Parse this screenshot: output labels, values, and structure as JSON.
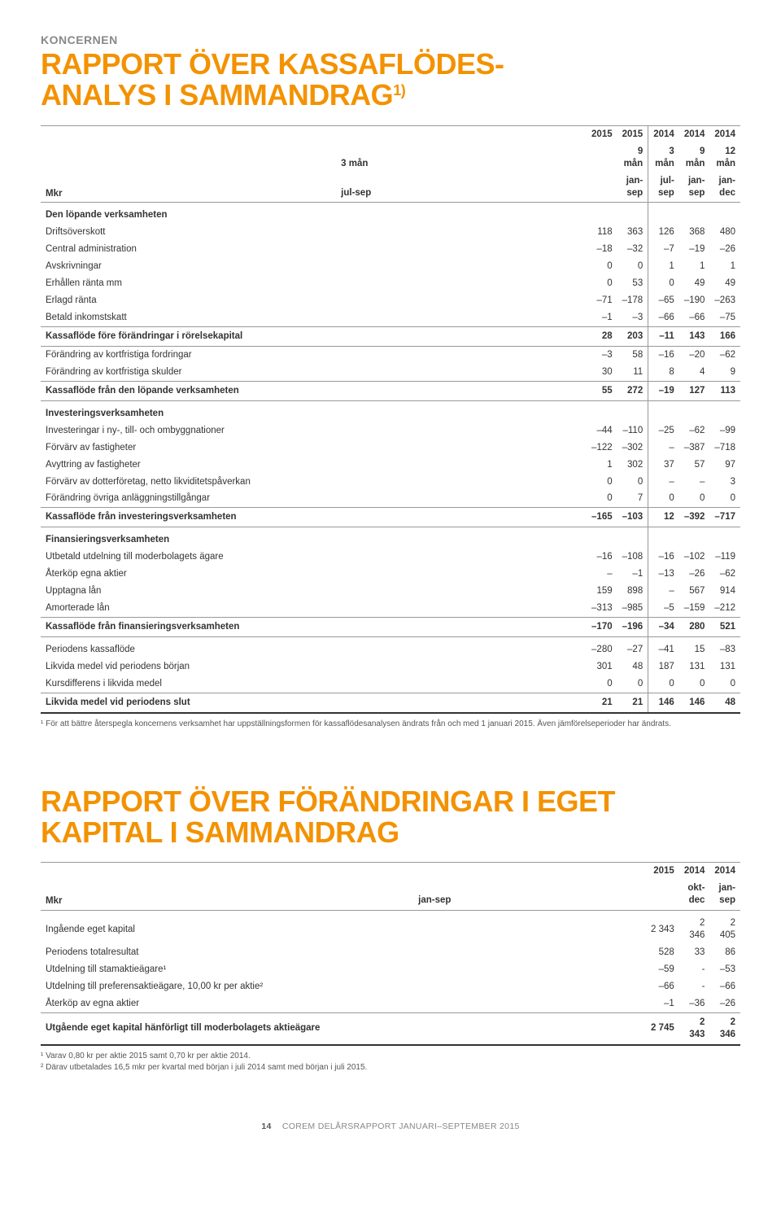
{
  "page": {
    "kicker": "KONCERNEN",
    "footer_page": "14",
    "footer_text": "COREM DELÅRSRAPPORT JANUARI–SEPTEMBER 2015"
  },
  "table1": {
    "title_line1": "RAPPORT ÖVER KASSAFLÖDES-",
    "title_line2": "ANALYS I SAMMANDRAG",
    "title_sup": "1)",
    "col_label": "Mkr",
    "columns": [
      {
        "y": "2015",
        "p": "3 mån",
        "r": "jul-sep"
      },
      {
        "y": "2015",
        "p": "9 mån",
        "r": "jan-sep"
      },
      {
        "y": "2014",
        "p": "3 mån",
        "r": "jul-sep"
      },
      {
        "y": "2014",
        "p": "9 mån",
        "r": "jan-sep"
      },
      {
        "y": "2014",
        "p": "12 mån",
        "r": "jan-dec"
      }
    ],
    "sections": [
      {
        "head": "Den löpande verksamheten",
        "rows": [
          {
            "l": "Driftsöverskott",
            "v": [
              "118",
              "363",
              "126",
              "368",
              "480"
            ]
          },
          {
            "l": "Central administration",
            "v": [
              "–18",
              "–32",
              "–7",
              "–19",
              "–26"
            ]
          },
          {
            "l": "Avskrivningar",
            "v": [
              "0",
              "0",
              "1",
              "1",
              "1"
            ]
          },
          {
            "l": "Erhållen ränta mm",
            "v": [
              "0",
              "53",
              "0",
              "49",
              "49"
            ]
          },
          {
            "l": "Erlagd ränta",
            "v": [
              "–71",
              "–178",
              "–65",
              "–190",
              "–263"
            ]
          },
          {
            "l": "Betald inkomstskatt",
            "v": [
              "–1",
              "–3",
              "–66",
              "–66",
              "–75"
            ]
          }
        ],
        "subtotal": {
          "l": "Kassaflöde före förändringar i rörelsekapital",
          "v": [
            "28",
            "203",
            "–11",
            "143",
            "166"
          ]
        },
        "rows2": [
          {
            "l": "Förändring av kortfristiga fordringar",
            "v": [
              "–3",
              "58",
              "–16",
              "–20",
              "–62"
            ]
          },
          {
            "l": "Förändring av kortfristiga skulder",
            "v": [
              "30",
              "11",
              "8",
              "4",
              "9"
            ]
          }
        ],
        "subtotal2": {
          "l": "Kassaflöde från den löpande verksamheten",
          "v": [
            "55",
            "272",
            "–19",
            "127",
            "113"
          ]
        }
      },
      {
        "head": "Investeringsverksamheten",
        "rows": [
          {
            "l": "Investeringar i ny-, till- och ombyggnationer",
            "v": [
              "–44",
              "–110",
              "–25",
              "–62",
              "–99"
            ]
          },
          {
            "l": "Förvärv av fastigheter",
            "v": [
              "–122",
              "–302",
              "–",
              "–387",
              "–718"
            ]
          },
          {
            "l": "Avyttring av fastigheter",
            "v": [
              "1",
              "302",
              "37",
              "57",
              "97"
            ]
          },
          {
            "l": "Förvärv av dotterföretag, netto likviditetspåverkan",
            "v": [
              "0",
              "0",
              "–",
              "–",
              "3"
            ]
          },
          {
            "l": "Förändring övriga anläggningstillgångar",
            "v": [
              "0",
              "7",
              "0",
              "0",
              "0"
            ]
          }
        ],
        "subtotal": {
          "l": "Kassaflöde från investeringsverksamheten",
          "v": [
            "–165",
            "–103",
            "12",
            "–392",
            "–717"
          ]
        }
      },
      {
        "head": "Finansieringsverksamheten",
        "rows": [
          {
            "l": "Utbetald utdelning till moderbolagets ägare",
            "v": [
              "–16",
              "–108",
              "–16",
              "–102",
              "–119"
            ]
          },
          {
            "l": "Återköp egna aktier",
            "v": [
              "–",
              "–1",
              "–13",
              "–26",
              "–62"
            ]
          },
          {
            "l": "Upptagna lån",
            "v": [
              "159",
              "898",
              "–",
              "567",
              "914"
            ]
          },
          {
            "l": "Amorterade lån",
            "v": [
              "–313",
              "–985",
              "–5",
              "–159",
              "–212"
            ]
          }
        ],
        "subtotal": {
          "l": "Kassaflöde från finansieringsverksamheten",
          "v": [
            "–170",
            "–196",
            "–34",
            "280",
            "521"
          ]
        }
      }
    ],
    "closing_rows": [
      {
        "l": "Periodens kassaflöde",
        "v": [
          "–280",
          "–27",
          "–41",
          "15",
          "–83"
        ]
      },
      {
        "l": "Likvida medel vid periodens början",
        "v": [
          "301",
          "48",
          "187",
          "131",
          "131"
        ]
      },
      {
        "l": "Kursdifferens i likvida medel",
        "v": [
          "0",
          "0",
          "0",
          "0",
          "0"
        ]
      }
    ],
    "final": {
      "l": "Likvida medel vid periodens slut",
      "v": [
        "21",
        "21",
        "146",
        "146",
        "48"
      ]
    },
    "footnote": "¹ För att bättre återspegla koncernens verksamhet har uppställningsformen för kassaflödesanalysen ändrats från och med 1 januari 2015. Även jämförelseperioder har ändrats."
  },
  "table2": {
    "title_line1": "RAPPORT ÖVER FÖRÄNDRINGAR I EGET",
    "title_line2": "KAPITAL I SAMMANDRAG",
    "col_label": "Mkr",
    "columns": [
      {
        "y": "2015",
        "r": "jan-sep"
      },
      {
        "y": "2014",
        "r": "okt-dec"
      },
      {
        "y": "2014",
        "r": "jan-sep"
      }
    ],
    "rows": [
      {
        "l": "Ingående eget kapital",
        "v": [
          "2 343",
          "2 346",
          "2 405"
        ],
        "topline": true
      },
      {
        "l": "Periodens totalresultat",
        "v": [
          "528",
          "33",
          "86"
        ]
      },
      {
        "l": "Utdelning till stamaktieägare¹",
        "v": [
          "–59",
          "-",
          "–53"
        ]
      },
      {
        "l": "Utdelning till preferensaktieägare, 10,00 kr per aktie²",
        "v": [
          "–66",
          "-",
          "–66"
        ]
      },
      {
        "l": "Återköp av egna aktier",
        "v": [
          "–1",
          "–36",
          "–26"
        ]
      }
    ],
    "final": {
      "l": "Utgående eget kapital hänförligt till moderbolagets aktieägare",
      "v": [
        "2 745",
        "2 343",
        "2 346"
      ]
    },
    "footnotes": [
      "¹ Varav 0,80 kr per aktie 2015 samt 0,70 kr per aktie 2014.",
      "² Därav utbetalades 16,5 mkr per kvartal med början i juli 2014 samt med början i juli 2015."
    ]
  }
}
